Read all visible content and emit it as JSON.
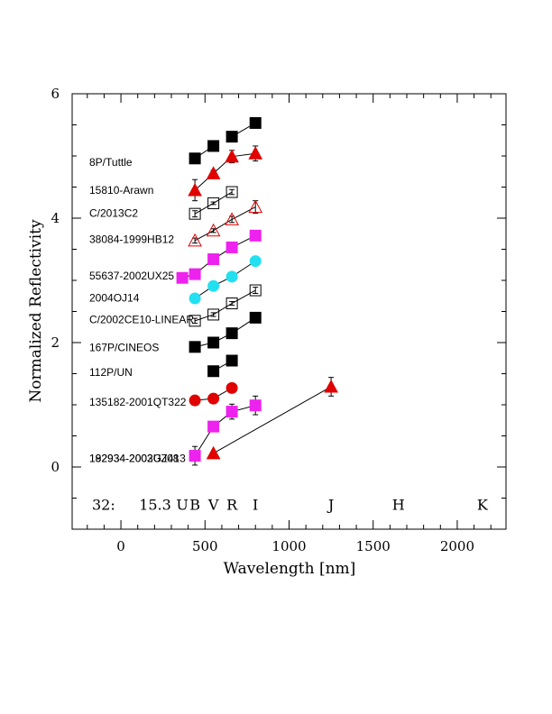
{
  "chart_data": {
    "type": "scatter",
    "xlabel": "Wavelength [nm]",
    "ylabel": "Normalized Reflectivity",
    "xlim": [
      -290,
      2290
    ],
    "ylim": [
      -1.0,
      6.0
    ],
    "xticks": [
      0,
      500,
      1000,
      1500,
      2000
    ],
    "yticks": [
      0,
      2,
      4,
      6
    ],
    "grid": false,
    "bands": [
      {
        "label": "U",
        "x": 365
      },
      {
        "label": "B",
        "x": 440
      },
      {
        "label": "V",
        "x": 550
      },
      {
        "label": "R",
        "x": 660
      },
      {
        "label": "I",
        "x": 800
      },
      {
        "label": "J",
        "x": 1250
      },
      {
        "label": "H",
        "x": 1650
      },
      {
        "label": "K",
        "x": 2150
      }
    ],
    "bottom_text": {
      "left": "32:",
      "mid": "15.3"
    },
    "series": [
      {
        "name": "8P/Tuttle",
        "label_y": 4.9,
        "marker": "square",
        "fill": "#000000",
        "edge": "#000000",
        "connect": [
          [
            0,
            1
          ],
          [
            2,
            3
          ]
        ],
        "points": [
          {
            "x": 440,
            "y": 4.96,
            "err": 0.03
          },
          {
            "x": 550,
            "y": 5.16,
            "err": 0.03
          },
          {
            "x": 660,
            "y": 5.31,
            "err": 0.03
          },
          {
            "x": 800,
            "y": 5.53,
            "err": 0.03
          }
        ]
      },
      {
        "name": "15810-Arawn",
        "label_y": 4.45,
        "marker": "triangle",
        "fill": "#e00000",
        "edge": "#000000",
        "connect": [
          [
            0,
            1
          ],
          [
            1,
            2
          ],
          [
            2,
            3
          ]
        ],
        "points": [
          {
            "x": 440,
            "y": 4.45,
            "err": 0.17
          },
          {
            "x": 550,
            "y": 4.72,
            "err": 0.05
          },
          {
            "x": 660,
            "y": 4.99,
            "err": 0.1
          },
          {
            "x": 800,
            "y": 5.04,
            "err": 0.12
          }
        ]
      },
      {
        "name": "C/2013C2",
        "label_y": 4.08,
        "marker": "square",
        "fill": "#ffffff",
        "edge": "#000000",
        "connect": [
          [
            0,
            1
          ],
          [
            1,
            2
          ]
        ],
        "points": [
          {
            "x": 440,
            "y": 4.07,
            "err": 0.05
          },
          {
            "x": 550,
            "y": 4.24,
            "err": 0.02
          },
          {
            "x": 660,
            "y": 4.42,
            "err": 0.04
          }
        ]
      },
      {
        "name": "38084-1999HB12",
        "label_y": 3.66,
        "marker": "triangle",
        "fill": "#ffffff",
        "edge": "#e00000",
        "connect": [
          [
            0,
            1
          ],
          [
            1,
            2
          ],
          [
            2,
            3
          ]
        ],
        "points": [
          {
            "x": 440,
            "y": 3.64,
            "err": 0.04
          },
          {
            "x": 550,
            "y": 3.8,
            "err": 0.03
          },
          {
            "x": 660,
            "y": 3.98,
            "err": 0.05
          },
          {
            "x": 800,
            "y": 4.18,
            "err": 0.1
          }
        ]
      },
      {
        "name": "55637-2002UX25",
        "label_y": 3.07,
        "marker": "square",
        "fill": "#ee22ee",
        "edge": "#ee22ee",
        "connect": [
          [
            0,
            1
          ],
          [
            1,
            2
          ],
          [
            2,
            3
          ],
          [
            3,
            4
          ]
        ],
        "points": [
          {
            "x": 365,
            "y": 3.04,
            "err": 0.03
          },
          {
            "x": 440,
            "y": 3.1,
            "err": 0.03
          },
          {
            "x": 550,
            "y": 3.34,
            "err": 0.03
          },
          {
            "x": 660,
            "y": 3.53,
            "err": 0.03
          },
          {
            "x": 800,
            "y": 3.72,
            "err": 0.03
          }
        ]
      },
      {
        "name": "2004OJ14",
        "label_y": 2.72,
        "marker": "circle",
        "fill": "#22e0f0",
        "edge": "#22e0f0",
        "connect": [
          [
            0,
            1
          ],
          [
            1,
            2
          ],
          [
            2,
            3
          ]
        ],
        "points": [
          {
            "x": 440,
            "y": 2.71,
            "err": 0.04
          },
          {
            "x": 550,
            "y": 2.91,
            "err": 0.03
          },
          {
            "x": 660,
            "y": 3.06,
            "err": 0.03
          },
          {
            "x": 800,
            "y": 3.31,
            "err": 0.04
          }
        ]
      },
      {
        "name": "C/2002CE10-LINEAR",
        "label_y": 2.37,
        "marker": "square",
        "fill": "#ffffff",
        "edge": "#000000",
        "connect": [
          [
            0,
            1
          ],
          [
            1,
            2
          ],
          [
            2,
            3
          ]
        ],
        "points": [
          {
            "x": 440,
            "y": 2.35,
            "err": 0.04
          },
          {
            "x": 550,
            "y": 2.45,
            "err": 0.03
          },
          {
            "x": 660,
            "y": 2.63,
            "err": 0.03
          },
          {
            "x": 800,
            "y": 2.84,
            "err": 0.05
          }
        ]
      },
      {
        "name": "167P/CINEOS",
        "label_y": 1.92,
        "marker": "square",
        "fill": "#000000",
        "edge": "#000000",
        "connect": [
          [
            0,
            1
          ],
          [
            1,
            2
          ],
          [
            2,
            3
          ]
        ],
        "points": [
          {
            "x": 440,
            "y": 1.93,
            "err": 0.02
          },
          {
            "x": 550,
            "y": 2.0,
            "err": 0.02
          },
          {
            "x": 660,
            "y": 2.15,
            "err": 0.02
          },
          {
            "x": 800,
            "y": 2.4,
            "err": 0.02
          }
        ]
      },
      {
        "name": "112P/UN",
        "label_y": 1.52,
        "marker": "square",
        "fill": "#000000",
        "edge": "#000000",
        "connect": [
          [
            0,
            1
          ]
        ],
        "points": [
          {
            "x": 550,
            "y": 1.54,
            "err": 0.02
          },
          {
            "x": 660,
            "y": 1.71,
            "err": 0.02
          }
        ]
      },
      {
        "name": "135182-2001QT322",
        "label_y": 1.04,
        "marker": "circle",
        "fill": "#e00000",
        "edge": "#e00000",
        "connect": [
          [
            0,
            1
          ],
          [
            1,
            2
          ]
        ],
        "points": [
          {
            "x": 440,
            "y": 1.07,
            "err": 0.05
          },
          {
            "x": 550,
            "y": 1.1,
            "err": 0.04
          },
          {
            "x": 660,
            "y": 1.27,
            "err": 0.07
          }
        ]
      },
      {
        "name": "182934-2002GJ08",
        "label_y": 0.14,
        "marker": "square",
        "fill": "#ee22ee",
        "edge": "#ee22ee",
        "connect": [
          [
            0,
            1
          ],
          [
            1,
            2
          ],
          [
            2,
            3
          ]
        ],
        "points": [
          {
            "x": 440,
            "y": 0.18,
            "err": 0.15
          },
          {
            "x": 550,
            "y": 0.65,
            "err": 0.05
          },
          {
            "x": 660,
            "y": 0.89,
            "err": 0.12
          },
          {
            "x": 800,
            "y": 0.99,
            "err": 0.15
          }
        ]
      },
      {
        "name": "192934-2003UZ413",
        "label_y": 0.14,
        "marker": "triangle",
        "fill": "#e00000",
        "edge": "#000000",
        "connect": [
          [
            0,
            1
          ]
        ],
        "points": [
          {
            "x": 550,
            "y": 0.22,
            "err": 0.03
          },
          {
            "x": 1250,
            "y": 1.29,
            "err": 0.15
          }
        ]
      }
    ]
  }
}
